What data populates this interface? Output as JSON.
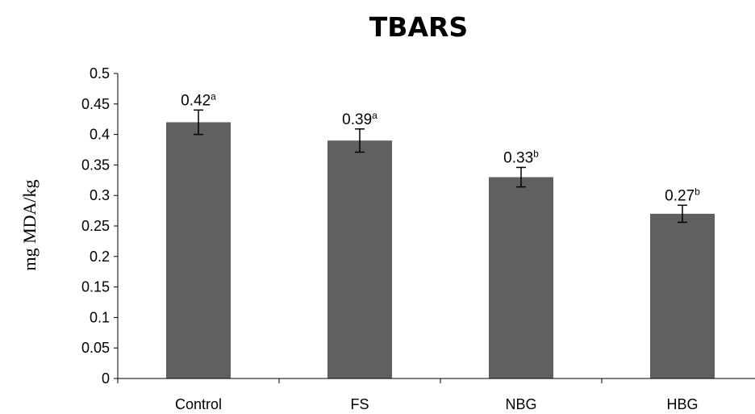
{
  "chart_data": {
    "type": "bar",
    "title": "TBARS",
    "xlabel": "",
    "ylabel": "mg MDA/kg",
    "ylim": [
      0,
      0.5
    ],
    "yticks": [
      "0",
      "0.05",
      "0.1",
      "0.15",
      "0.2",
      "0.25",
      "0.3",
      "0.35",
      "0.4",
      "0.45",
      "0.5"
    ],
    "categories": [
      "Control",
      "FS",
      "NBG",
      "HBG"
    ],
    "values": [
      0.42,
      0.39,
      0.33,
      0.27
    ],
    "errors": [
      0.02,
      0.019,
      0.016,
      0.014
    ],
    "value_labels": [
      "0.42",
      "0.39",
      "0.33",
      "0.27"
    ],
    "letters": [
      "a",
      "a",
      "b",
      "b"
    ],
    "grid": false,
    "legend": "none",
    "bar_color": "#606060"
  }
}
